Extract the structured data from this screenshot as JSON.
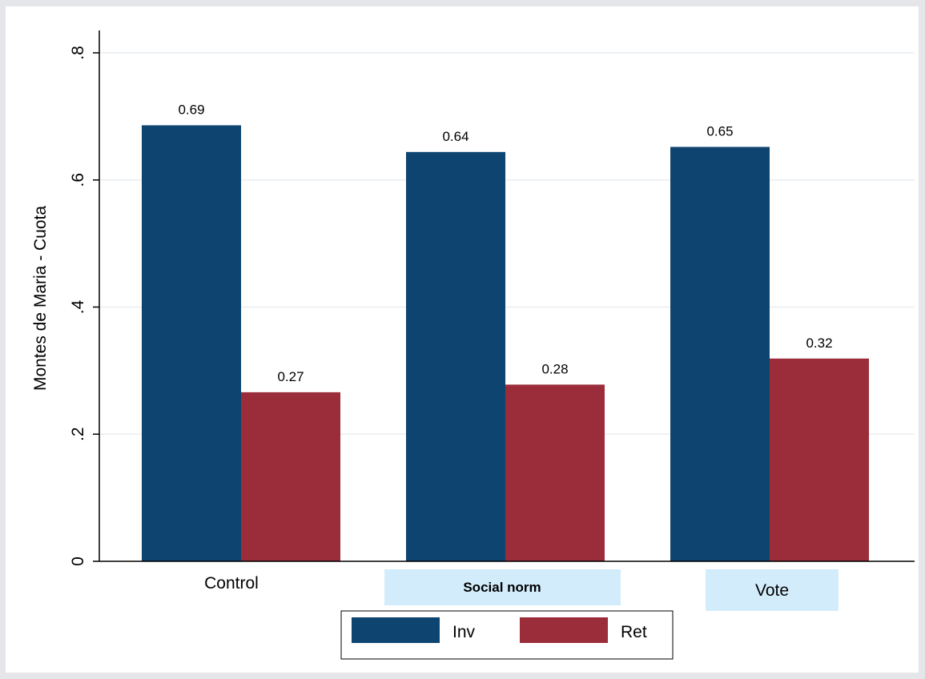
{
  "chart_data": {
    "type": "bar",
    "ylabel": "Montes de Maria - Cuota",
    "ylim": [
      0,
      0.8
    ],
    "yticks": [
      0,
      0.2,
      0.4,
      0.6,
      0.8
    ],
    "ytick_labels": [
      "0",
      ".2",
      ".4",
      ".6",
      ".8"
    ],
    "grid": true,
    "categories": [
      "Control",
      "Social norm",
      "Vote"
    ],
    "category_highlight_color": "#d3ecfb",
    "series": [
      {
        "name": "Inv",
        "color": "#0d4470",
        "values": [
          0.686,
          0.644,
          0.652
        ],
        "labels": [
          "0.69",
          "0.64",
          "0.65"
        ]
      },
      {
        "name": "Ret",
        "color": "#9b2d3a",
        "values": [
          0.266,
          0.278,
          0.319
        ],
        "labels": [
          "0.27",
          "0.28",
          "0.32"
        ]
      }
    ],
    "legend_position": "bottom-center"
  }
}
